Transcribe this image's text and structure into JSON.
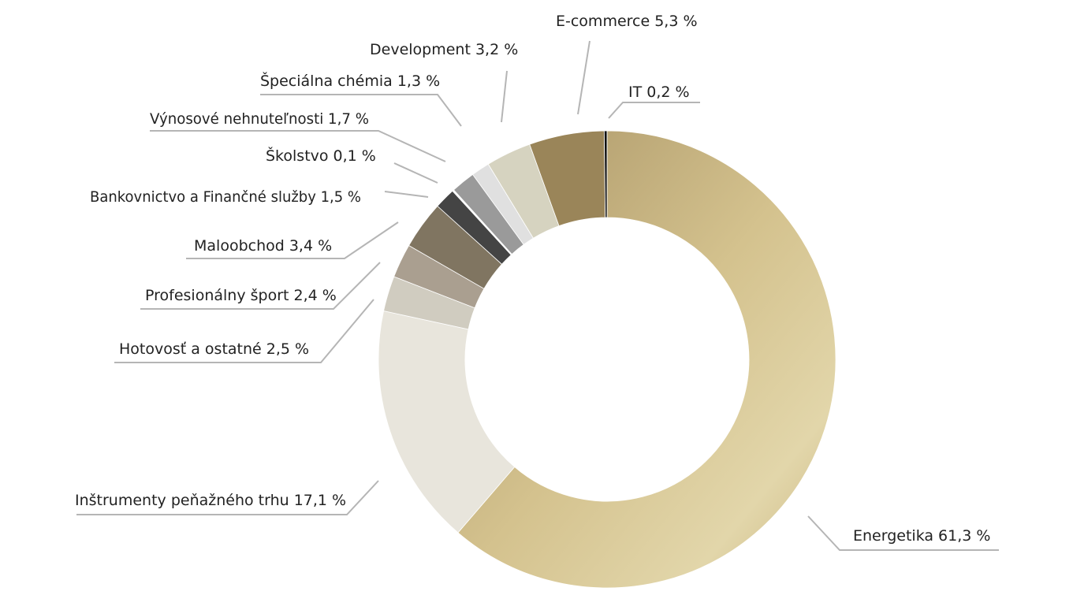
{
  "chart_data": {
    "type": "pie",
    "donut": true,
    "legend": "none",
    "categories": [
      "Energetika",
      "Inštrumenty peňažného trhu",
      "Hotovosť a ostatné",
      "Profesionálny šport",
      "Maloobchod",
      "Bankovnictvo a Finančné služby",
      "Školstvo",
      "Výnosové nehnuteľnosti",
      "Špeciálna chémia",
      "Development",
      "E-commerce",
      "IT"
    ],
    "values": [
      61.3,
      17.1,
      2.5,
      2.4,
      3.4,
      1.5,
      0.1,
      1.7,
      1.3,
      3.2,
      5.3,
      0.2
    ],
    "labels": [
      "Energetika 61,3 %",
      "Inštrumenty peňažného trhu 17,1 %",
      "Hotovosť a ostatné 2,5 %",
      "Profesionálny šport 2,4 %",
      "Maloobchod 3,4 %",
      "Bankovnictvo a Finančné služby 1,5 %",
      "Školstvo 0,1 %",
      "Výnosové nehnuteľnosti 1,7 %",
      "Špeciálna chémia 1,3 %",
      "Development 3,2 %",
      "E-commerce 5,3 %",
      "IT 0,2 %"
    ],
    "colors": [
      "#c9b889",
      "#e8e5dc",
      "#d0ccc0",
      "#aa9f90",
      "#807561",
      "#444444",
      "#ffffff",
      "#9a9a9a",
      "#e0e0e0",
      "#d6d3c0",
      "#9a8559",
      "#111111"
    ]
  }
}
